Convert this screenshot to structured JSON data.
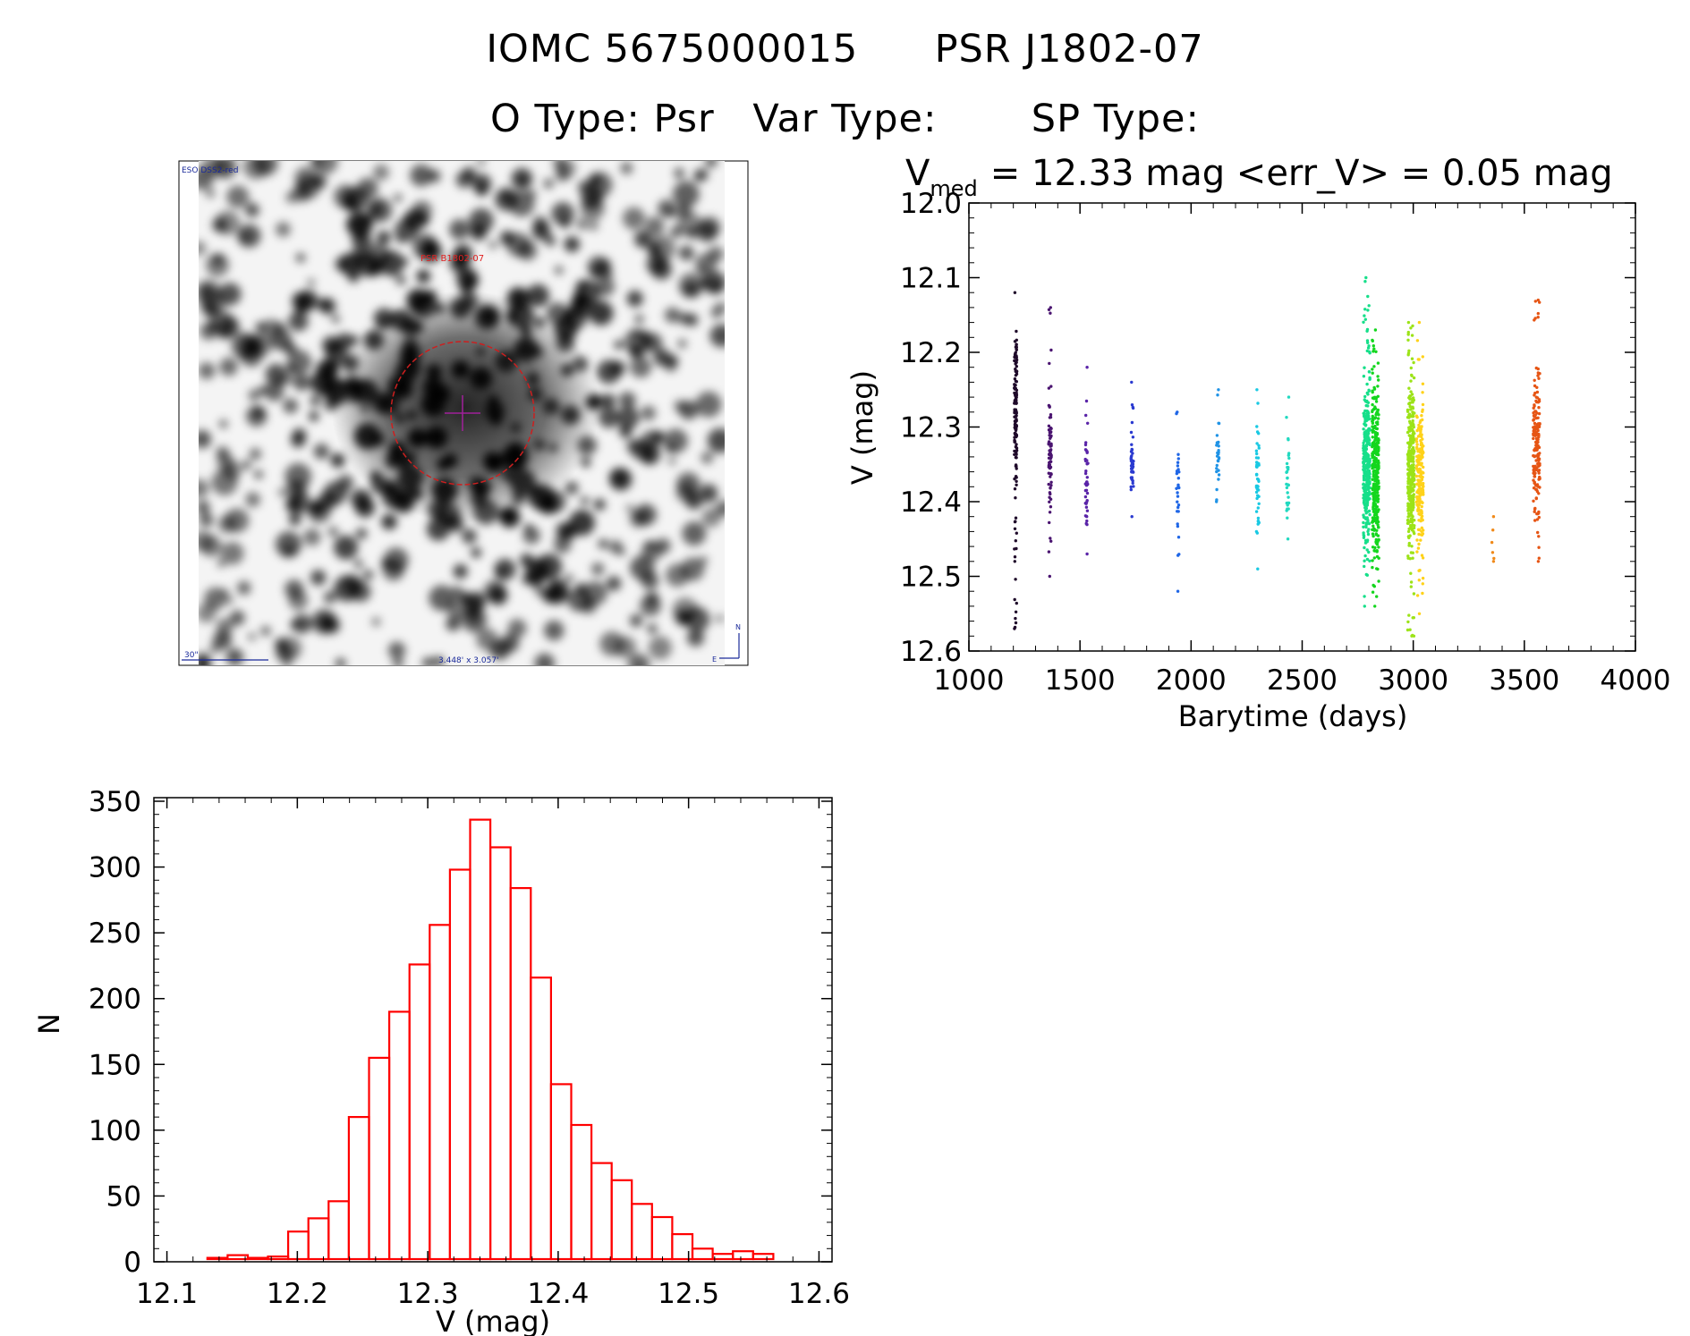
{
  "header": {
    "id_label": "IOMC 5675000015",
    "name_label": "PSR J1802-07",
    "otype": "O Type: Psr",
    "vartype": "Var Type:",
    "sptype": "SP Type:"
  },
  "image_panel": {
    "survey_label": "ESO DSS2-red",
    "object_label": "PSR B1802-07",
    "scale_label": "30\"",
    "fov_label": "3.448' x 3.057'",
    "compass_north": "N",
    "compass_east": "E",
    "colors": {
      "circle": "#cc1f1f",
      "marker": "#a0209a",
      "text_red": "#e02020",
      "text_blue": "#1a2a9a"
    }
  },
  "chart_data": [
    {
      "type": "scatter",
      "title_prefix": "V",
      "title_sub": "med",
      "title_rest": "= 12.33 mag <err_V> = 0.05 mag",
      "xlabel": "Barytime (days)",
      "ylabel": "V (mag)",
      "xlim": [
        1000,
        4000
      ],
      "ylim": [
        12.6,
        12.0
      ],
      "xticks": [
        1000,
        1500,
        2000,
        2500,
        3000,
        3500,
        4000
      ],
      "yticks": [
        12.0,
        12.1,
        12.2,
        12.3,
        12.4,
        12.5,
        12.6
      ],
      "y_inverted": true,
      "groups": [
        {
          "x": 1210,
          "y_min": 12.12,
          "y_max": 12.57,
          "dense_min": 12.14,
          "dense_max": 12.41,
          "n": 150,
          "color": "#1f0a2a"
        },
        {
          "x": 1365,
          "y_min": 12.14,
          "y_max": 12.5,
          "dense_min": 12.23,
          "dense_max": 12.46,
          "n": 80,
          "color": "#4a1470"
        },
        {
          "x": 1530,
          "y_min": 12.22,
          "y_max": 12.47,
          "dense_min": 12.27,
          "dense_max": 12.46,
          "n": 45,
          "color": "#5a24a8"
        },
        {
          "x": 1735,
          "y_min": 12.24,
          "y_max": 12.42,
          "dense_min": 12.3,
          "dense_max": 12.4,
          "n": 45,
          "color": "#2a3ad0"
        },
        {
          "x": 1940,
          "y_min": 12.28,
          "y_max": 12.52,
          "dense_min": 12.33,
          "dense_max": 12.46,
          "n": 30,
          "color": "#1f66e6"
        },
        {
          "x": 2120,
          "y_min": 12.25,
          "y_max": 12.4,
          "dense_min": 12.28,
          "dense_max": 12.38,
          "n": 30,
          "color": "#1f93e6"
        },
        {
          "x": 2300,
          "y_min": 12.25,
          "y_max": 12.49,
          "dense_min": 12.28,
          "dense_max": 12.46,
          "n": 50,
          "color": "#19c9e3"
        },
        {
          "x": 2435,
          "y_min": 12.26,
          "y_max": 12.45,
          "dense_min": 12.3,
          "dense_max": 12.44,
          "n": 30,
          "color": "#21d9c0"
        },
        {
          "x": 2790,
          "y_min": 12.1,
          "y_max": 12.54,
          "dense_min": 12.2,
          "dense_max": 12.5,
          "n": 320,
          "color": "#16df8a"
        },
        {
          "x": 2830,
          "y_min": 12.17,
          "y_max": 12.54,
          "dense_min": 12.21,
          "dense_max": 12.51,
          "n": 320,
          "color": "#14d61e"
        },
        {
          "x": 2990,
          "y_min": 12.16,
          "y_max": 12.58,
          "dense_min": 12.2,
          "dense_max": 12.5,
          "n": 330,
          "color": "#9ce318"
        },
        {
          "x": 3030,
          "y_min": 12.16,
          "y_max": 12.55,
          "dense_min": 12.25,
          "dense_max": 12.48,
          "n": 200,
          "color": "#ffd21a"
        },
        {
          "x": 3360,
          "y_min": 12.42,
          "y_max": 12.48,
          "dense_min": 12.42,
          "dense_max": 12.48,
          "n": 6,
          "color": "#f08a1a"
        },
        {
          "x": 3555,
          "y_min": 12.13,
          "y_max": 12.48,
          "dense_min": 12.2,
          "dense_max": 12.46,
          "n": 160,
          "color": "#e65514"
        }
      ]
    },
    {
      "type": "bar",
      "style": "histogram-outline",
      "xlabel": "V (mag)",
      "ylabel": "N",
      "xlim": [
        12.09,
        12.61
      ],
      "ylim": [
        0,
        350
      ],
      "xticks": [
        12.1,
        12.2,
        12.3,
        12.4,
        12.5,
        12.6
      ],
      "yticks": [
        0,
        50,
        100,
        150,
        200,
        250,
        300,
        350
      ],
      "bin_start": 12.1,
      "bin_width": 0.0155,
      "values": [
        1,
        1,
        3,
        5,
        3,
        4,
        23,
        33,
        46,
        110,
        155,
        190,
        226,
        256,
        298,
        336,
        315,
        284,
        216,
        135,
        104,
        75,
        62,
        44,
        34,
        21,
        10,
        6,
        8,
        6,
        2,
        1
      ],
      "color": "#ff0000"
    }
  ]
}
